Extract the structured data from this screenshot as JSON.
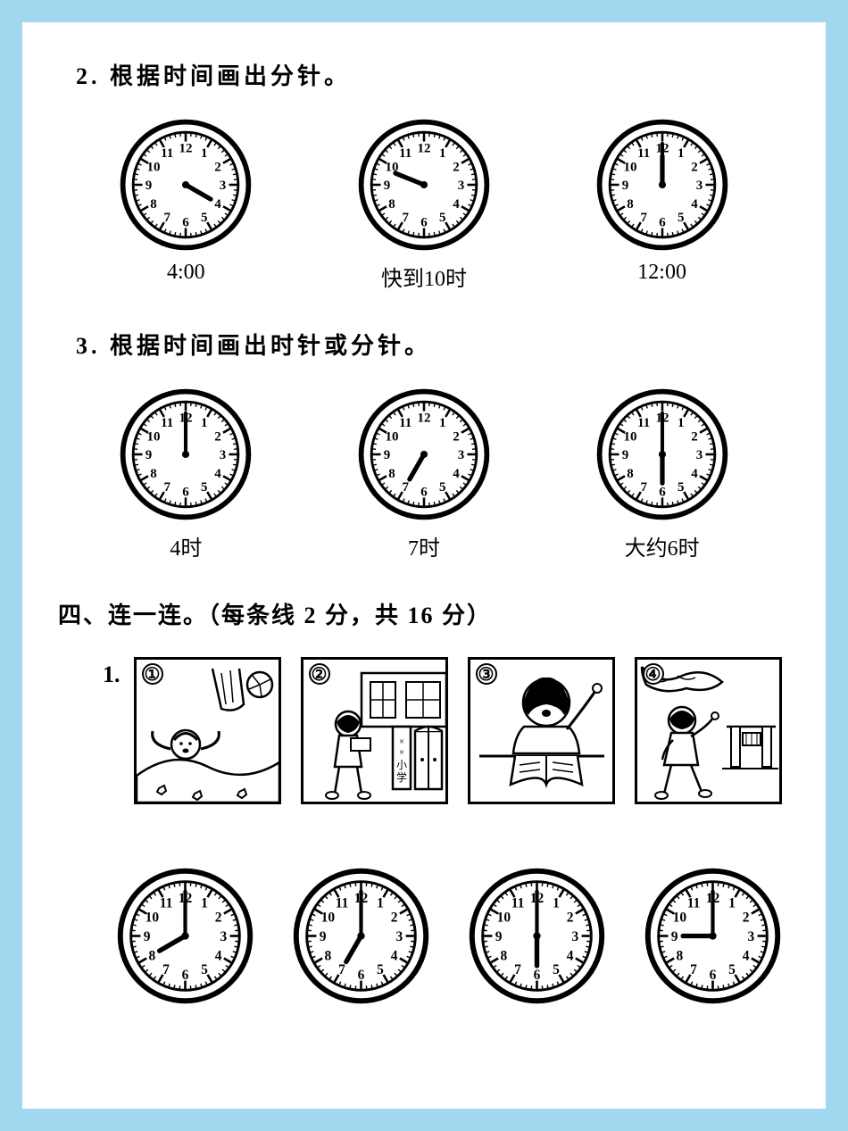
{
  "q2": {
    "title": "2. 根据时间画出分针。",
    "clocks": [
      {
        "label": "4:00",
        "hour_angle": 120,
        "hour_len": 28,
        "minute_angle": null
      },
      {
        "label": "快到10时",
        "hour_angle": 292,
        "hour_len": 30,
        "minute_angle": null
      },
      {
        "label": "12:00",
        "hour_angle": 0,
        "hour_len": 28,
        "minute_angle": null,
        "show_minute_at": 0,
        "minute_len": 40
      }
    ]
  },
  "q3": {
    "title": "3. 根据时间画出时针或分针。",
    "clocks": [
      {
        "label": "4时",
        "minute_angle": 0,
        "minute_len": 40,
        "hour_angle": null
      },
      {
        "label": "7时",
        "hour_angle": 210,
        "hour_len": 28,
        "minute_angle": null
      },
      {
        "label": "大约6时",
        "minute_angle": 0,
        "minute_len": 40,
        "hour_angle": 180,
        "hour_len": 28
      }
    ]
  },
  "q4": {
    "title": "四、连一连。（每条线 2 分，共 16 分）",
    "item_num": "1.",
    "scenes": [
      {
        "id": "①"
      },
      {
        "id": "②"
      },
      {
        "id": "③"
      },
      {
        "id": "④"
      }
    ],
    "clocks": [
      {
        "hour_angle": 240,
        "minute_angle": 0
      },
      {
        "hour_angle": 210,
        "minute_angle": 0
      },
      {
        "hour_angle": 180,
        "minute_angle": 0
      },
      {
        "hour_angle": 270,
        "minute_angle": 0
      }
    ]
  },
  "style": {
    "border_color": "#a0d8f0",
    "page_bg": "#ffffff",
    "stroke": "#000000",
    "title_fontsize": 26,
    "label_fontsize": 24,
    "clock_face_r": 60,
    "clock_inner_r": 50,
    "hour_len_default": 28,
    "minute_len_default": 42
  }
}
